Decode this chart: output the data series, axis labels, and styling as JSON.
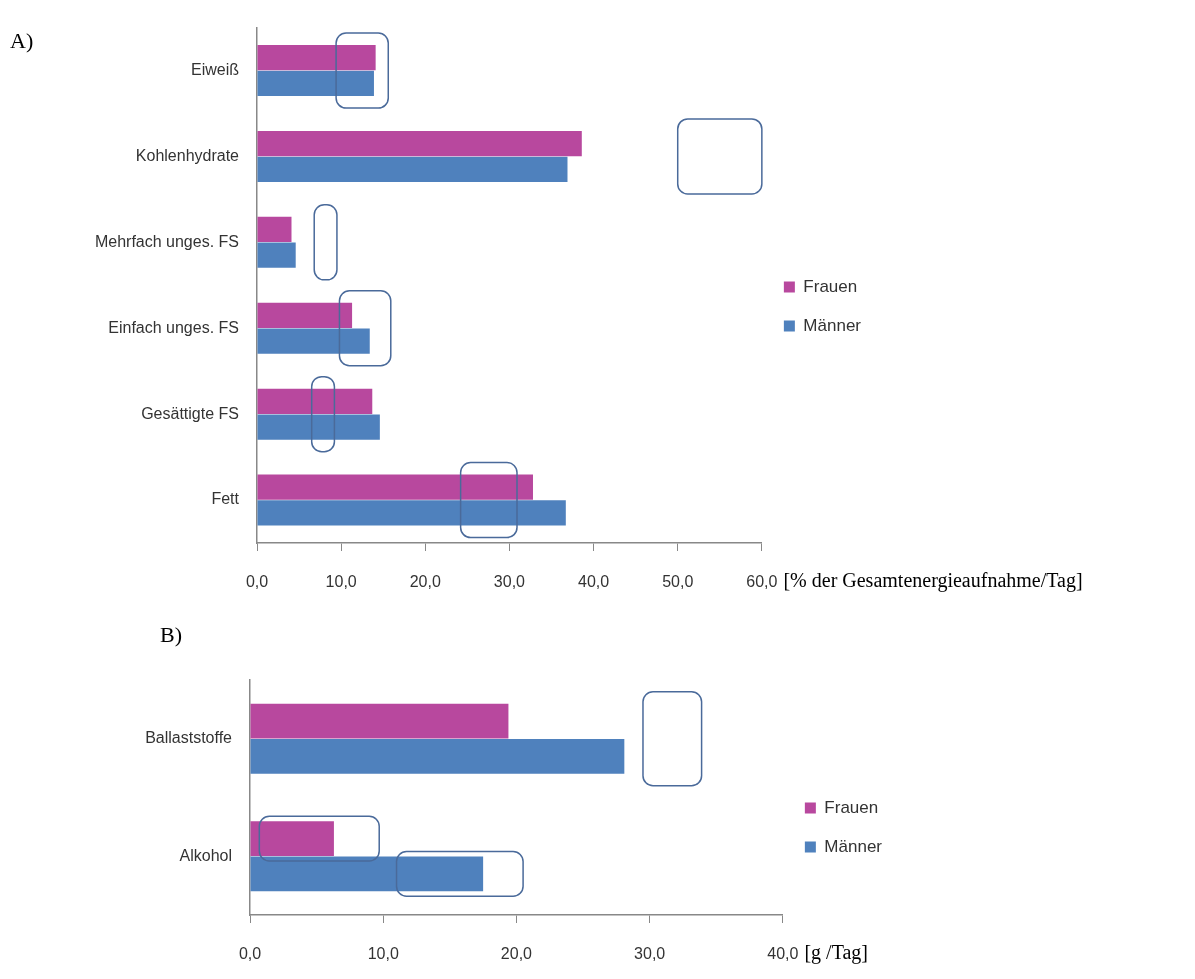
{
  "chart_data": [
    {
      "type": "bar",
      "orientation": "horizontal",
      "title": "A)",
      "xlabel": "[% der Gesamtenergieaufnahme/Tag]",
      "categories": [
        "Eiweiß",
        "Kohlenhydrate",
        "Mehrfach unges. FS",
        "Einfach unges. FS",
        "Gesättigte FS",
        "Fett"
      ],
      "xlim": [
        0,
        60
      ],
      "xticks": [
        {
          "value": 0,
          "label": "0,0"
        },
        {
          "value": 10,
          "label": "10,0"
        },
        {
          "value": 20,
          "label": "20,0"
        },
        {
          "value": 30,
          "label": "30,0"
        },
        {
          "value": 40,
          "label": "40,0"
        },
        {
          "value": 50,
          "label": "50,0"
        },
        {
          "value": 60,
          "label": "60,0"
        }
      ],
      "grid": false,
      "legend": "right",
      "series": [
        {
          "name": "Frauen",
          "color": "#b8489e",
          "values": [
            14.1,
            38.6,
            4.1,
            11.3,
            13.7,
            32.8
          ]
        },
        {
          "name": "Männer",
          "color": "#4f81bd",
          "values": [
            13.9,
            36.9,
            4.6,
            13.4,
            14.6,
            36.7
          ]
        },
        {
          "type": "bar",
          "color": "#4a6a9a",
          "base": [
            9.4,
            50,
            6.8,
            9.8,
            6.5,
            24.2
          ],
          "values": [
            6.2,
            10,
            2.7,
            6.1,
            2.7,
            6.7
          ]
        }
      ]
    },
    {
      "type": "bar",
      "orientation": "horizontal",
      "title": "B)",
      "xlabel": "[g /Tag]",
      "categories": [
        "Ballaststoffe",
        "Alkohol"
      ],
      "xlim": [
        0,
        40
      ],
      "xticks": [
        {
          "value": 0,
          "label": "0,0"
        },
        {
          "value": 10,
          "label": "10,0"
        },
        {
          "value": 20,
          "label": "20,0"
        },
        {
          "value": 30,
          "label": "30,0"
        },
        {
          "value": 40,
          "label": "40,0"
        }
      ],
      "grid": false,
      "legend": "right",
      "series": [
        {
          "name": "Frauen",
          "color": "#b8489e",
          "values": [
            19.4,
            6.3
          ]
        },
        {
          "name": "Männer",
          "color": "#4f81bd",
          "values": [
            28.1,
            17.5
          ]
        },
        {
          "type": "bar",
          "color": "#4a6a9a",
          "base": [
            29.5,
            0.7
          ],
          "values": [
            4.4,
            9.0
          ]
        },
        {
          "type": "bar",
          "color": "#4a6a9a",
          "base": [
            null,
            11.0
          ],
          "values": [
            null,
            9.5
          ]
        }
      ]
    }
  ]
}
